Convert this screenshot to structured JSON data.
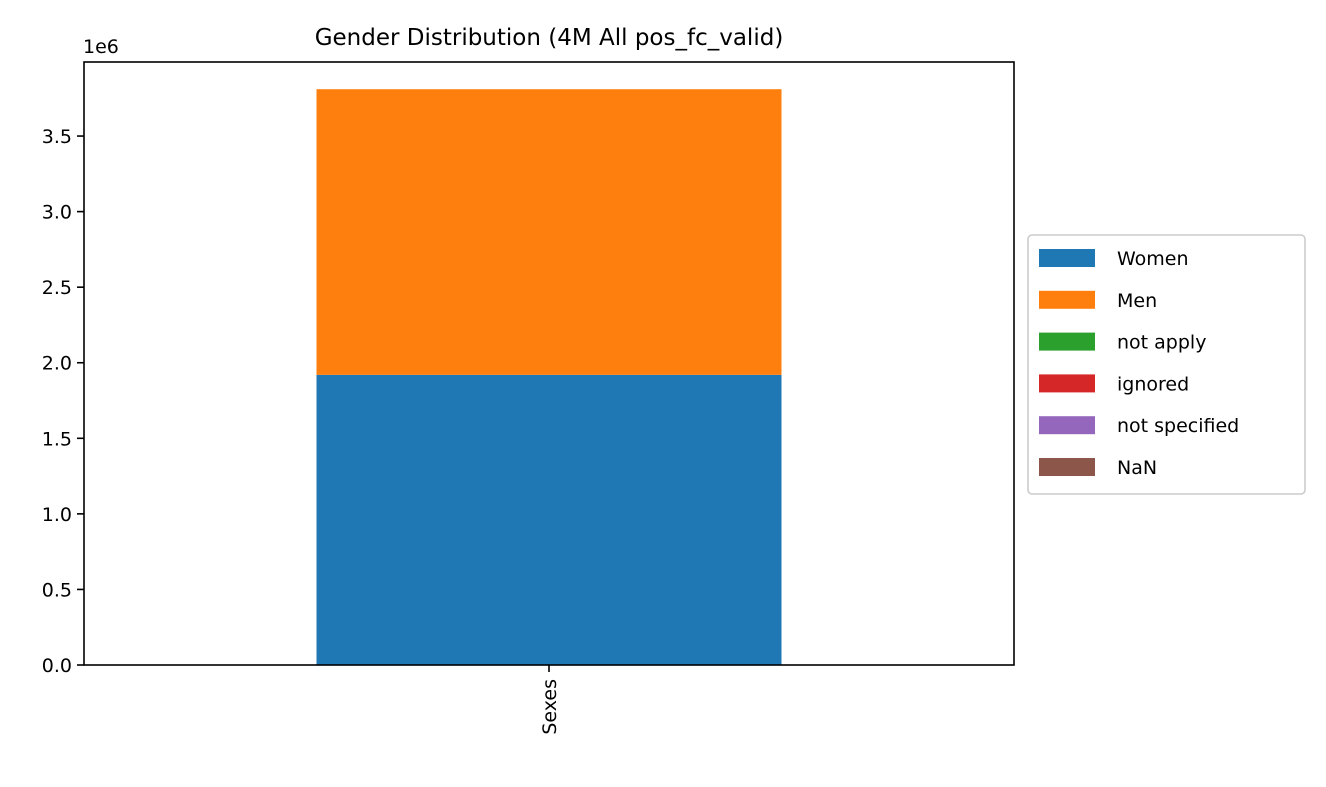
{
  "chart_data": {
    "type": "bar",
    "stacked": true,
    "title": "Gender Distribution (4M All pos_fc_valid)",
    "categories": [
      "Sexes"
    ],
    "series": [
      {
        "name": "Women",
        "values": [
          1920000
        ],
        "color": "#1f77b4"
      },
      {
        "name": "Men",
        "values": [
          1890000
        ],
        "color": "#ff7f0e"
      },
      {
        "name": "not apply",
        "values": [
          0
        ],
        "color": "#2ca02c"
      },
      {
        "name": "ignored",
        "values": [
          0
        ],
        "color": "#d62728"
      },
      {
        "name": "not specified",
        "values": [
          0
        ],
        "color": "#9467bd"
      },
      {
        "name": "NaN",
        "values": [
          0
        ],
        "color": "#8c564b"
      }
    ],
    "ylim": [
      0,
      3990000
    ],
    "y_offset_label": "1e6",
    "y_ticks": [
      0,
      500000,
      1000000,
      1500000,
      2000000,
      2500000,
      3000000,
      3500000
    ],
    "y_tick_labels": [
      "0.0",
      "0.5",
      "1.0",
      "1.5",
      "2.0",
      "2.5",
      "3.0",
      "3.5"
    ],
    "xlabel": "",
    "ylabel": "",
    "grid": false,
    "legend_placement": "center-right outside"
  }
}
